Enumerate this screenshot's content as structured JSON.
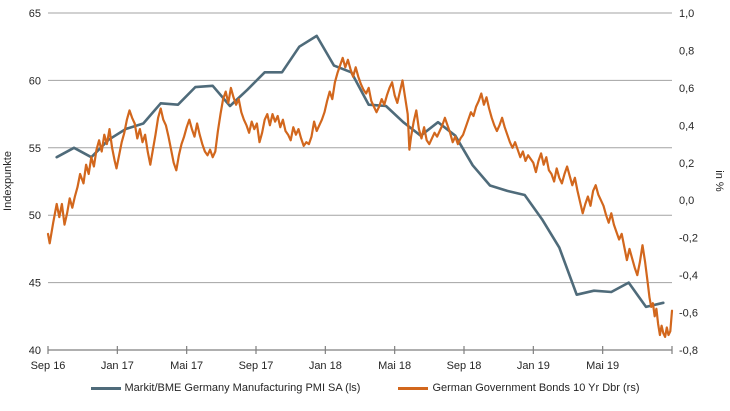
{
  "chart_data": {
    "type": "line",
    "title": "",
    "background_color": "#ffffff",
    "grid_color": "#a3a3a3",
    "axis_color": "#7f7f7f",
    "text_color": "#262626",
    "grid": true,
    "legend_position": "bottom-center",
    "x_months_total": 36,
    "x_axis": {
      "tick_labels": [
        "Sep 16",
        "Jan 17",
        "Mai 17",
        "Sep 17",
        "Jan 18",
        "Mai 18",
        "Sep 18",
        "Jan 19",
        "Mai 19"
      ],
      "num_ticks": 10
    },
    "y_left": {
      "label": "Indexpunkte",
      "min": 40,
      "max": 65,
      "ticks": [
        "65",
        "60",
        "55",
        "50",
        "45",
        "40"
      ],
      "tick_values": [
        65,
        60,
        55,
        50,
        45,
        40
      ],
      "grid_values": [
        65,
        60,
        55,
        50,
        45
      ]
    },
    "y_right": {
      "label": "in %",
      "min": -0.8,
      "max": 1.0,
      "ticks": [
        "1,0",
        "0,8",
        "0,6",
        "0,4",
        "0,2",
        "0,0",
        "-0,2",
        "-0,4",
        "-0,6",
        "-0,8"
      ],
      "tick_values": [
        1.0,
        0.8,
        0.6,
        0.4,
        0.2,
        0.0,
        -0.2,
        -0.4,
        -0.6,
        -0.8
      ]
    },
    "series": [
      {
        "name": "Markit/BME Germany Manufacturing PMI SA (ls)",
        "axis": "left",
        "color": "#4f6b7a",
        "line_width": 2.6,
        "cadence": "monthly",
        "x_offset_months": 0.5,
        "values": [
          54.3,
          55.0,
          54.3,
          55.6,
          56.4,
          56.8,
          58.3,
          58.2,
          59.5,
          59.6,
          58.1,
          59.3,
          60.6,
          60.6,
          62.5,
          63.3,
          61.1,
          60.6,
          58.2,
          58.1,
          56.9,
          55.9,
          56.9,
          55.9,
          53.7,
          52.2,
          51.8,
          51.5,
          49.7,
          47.6,
          44.1,
          44.4,
          44.3,
          45.0,
          43.2,
          43.5
        ]
      },
      {
        "name": "German Government Bonds 10 Yr Dbr (rs)",
        "axis": "right",
        "color": "#d2671d",
        "line_width": 2.2,
        "cadence": "irregular",
        "points": [
          [
            0,
            -0.18
          ],
          [
            0.1,
            -0.23
          ],
          [
            0.3,
            -0.12
          ],
          [
            0.5,
            -0.02
          ],
          [
            0.65,
            -0.09
          ],
          [
            0.8,
            -0.02
          ],
          [
            0.95,
            -0.13
          ],
          [
            1.1,
            -0.07
          ],
          [
            1.25,
            0.01
          ],
          [
            1.4,
            -0.04
          ],
          [
            1.55,
            0.02
          ],
          [
            1.7,
            0.07
          ],
          [
            1.85,
            0.14
          ],
          [
            2.05,
            0.09
          ],
          [
            2.2,
            0.19
          ],
          [
            2.35,
            0.14
          ],
          [
            2.5,
            0.23
          ],
          [
            2.65,
            0.18
          ],
          [
            2.8,
            0.27
          ],
          [
            2.95,
            0.32
          ],
          [
            3.1,
            0.26
          ],
          [
            3.25,
            0.35
          ],
          [
            3.4,
            0.3
          ],
          [
            3.55,
            0.38
          ],
          [
            3.7,
            0.28
          ],
          [
            3.85,
            0.21
          ],
          [
            3.95,
            0.17
          ],
          [
            4.1,
            0.24
          ],
          [
            4.25,
            0.31
          ],
          [
            4.4,
            0.36
          ],
          [
            4.55,
            0.43
          ],
          [
            4.7,
            0.48
          ],
          [
            4.85,
            0.44
          ],
          [
            5,
            0.41
          ],
          [
            5.15,
            0.33
          ],
          [
            5.3,
            0.38
          ],
          [
            5.45,
            0.31
          ],
          [
            5.6,
            0.35
          ],
          [
            5.75,
            0.26
          ],
          [
            5.9,
            0.19
          ],
          [
            6.05,
            0.27
          ],
          [
            6.2,
            0.35
          ],
          [
            6.35,
            0.44
          ],
          [
            6.5,
            0.49
          ],
          [
            6.65,
            0.43
          ],
          [
            6.8,
            0.4
          ],
          [
            6.95,
            0.34
          ],
          [
            7.1,
            0.27
          ],
          [
            7.25,
            0.2
          ],
          [
            7.4,
            0.16
          ],
          [
            7.55,
            0.24
          ],
          [
            7.7,
            0.3
          ],
          [
            7.85,
            0.34
          ],
          [
            8,
            0.39
          ],
          [
            8.15,
            0.43
          ],
          [
            8.3,
            0.38
          ],
          [
            8.45,
            0.34
          ],
          [
            8.6,
            0.41
          ],
          [
            8.75,
            0.35
          ],
          [
            8.9,
            0.3
          ],
          [
            9.05,
            0.26
          ],
          [
            9.2,
            0.24
          ],
          [
            9.35,
            0.27
          ],
          [
            9.5,
            0.23
          ],
          [
            9.65,
            0.26
          ],
          [
            9.8,
            0.37
          ],
          [
            9.95,
            0.46
          ],
          [
            10.1,
            0.54
          ],
          [
            10.25,
            0.58
          ],
          [
            10.4,
            0.52
          ],
          [
            10.55,
            0.6
          ],
          [
            10.7,
            0.55
          ],
          [
            10.85,
            0.51
          ],
          [
            11,
            0.54
          ],
          [
            11.15,
            0.47
          ],
          [
            11.3,
            0.43
          ],
          [
            11.45,
            0.4
          ],
          [
            11.6,
            0.36
          ],
          [
            11.75,
            0.42
          ],
          [
            11.9,
            0.38
          ],
          [
            12.05,
            0.41
          ],
          [
            12.2,
            0.31
          ],
          [
            12.35,
            0.36
          ],
          [
            12.5,
            0.43
          ],
          [
            12.65,
            0.46
          ],
          [
            12.8,
            0.4
          ],
          [
            12.95,
            0.46
          ],
          [
            13.1,
            0.42
          ],
          [
            13.25,
            0.45
          ],
          [
            13.4,
            0.39
          ],
          [
            13.55,
            0.43
          ],
          [
            13.7,
            0.37
          ],
          [
            13.85,
            0.35
          ],
          [
            14,
            0.32
          ],
          [
            14.15,
            0.39
          ],
          [
            14.3,
            0.35
          ],
          [
            14.45,
            0.38
          ],
          [
            14.6,
            0.33
          ],
          [
            14.75,
            0.29
          ],
          [
            14.9,
            0.31
          ],
          [
            15.05,
            0.3
          ],
          [
            15.2,
            0.34
          ],
          [
            15.35,
            0.42
          ],
          [
            15.5,
            0.37
          ],
          [
            15.65,
            0.4
          ],
          [
            15.8,
            0.43
          ],
          [
            15.95,
            0.47
          ],
          [
            16.1,
            0.53
          ],
          [
            16.25,
            0.58
          ],
          [
            16.4,
            0.54
          ],
          [
            16.55,
            0.63
          ],
          [
            16.7,
            0.68
          ],
          [
            16.85,
            0.72
          ],
          [
            17,
            0.76
          ],
          [
            17.15,
            0.71
          ],
          [
            17.3,
            0.75
          ],
          [
            17.45,
            0.7
          ],
          [
            17.6,
            0.66
          ],
          [
            17.75,
            0.71
          ],
          [
            17.9,
            0.66
          ],
          [
            18.05,
            0.62
          ],
          [
            18.2,
            0.59
          ],
          [
            18.35,
            0.57
          ],
          [
            18.5,
            0.6
          ],
          [
            18.65,
            0.53
          ],
          [
            18.8,
            0.5
          ],
          [
            18.95,
            0.47
          ],
          [
            19.1,
            0.5
          ],
          [
            19.25,
            0.54
          ],
          [
            19.4,
            0.51
          ],
          [
            19.55,
            0.56
          ],
          [
            19.7,
            0.6
          ],
          [
            19.85,
            0.63
          ],
          [
            20,
            0.56
          ],
          [
            20.15,
            0.52
          ],
          [
            20.3,
            0.58
          ],
          [
            20.45,
            0.64
          ],
          [
            20.6,
            0.55
          ],
          [
            20.75,
            0.46
          ],
          [
            20.85,
            0.27
          ],
          [
            20.95,
            0.34
          ],
          [
            21.1,
            0.42
          ],
          [
            21.25,
            0.48
          ],
          [
            21.4,
            0.38
          ],
          [
            21.55,
            0.33
          ],
          [
            21.7,
            0.39
          ],
          [
            21.85,
            0.32
          ],
          [
            22,
            0.3
          ],
          [
            22.15,
            0.33
          ],
          [
            22.3,
            0.36
          ],
          [
            22.45,
            0.34
          ],
          [
            22.6,
            0.37
          ],
          [
            22.75,
            0.4
          ],
          [
            22.9,
            0.44
          ],
          [
            23.05,
            0.4
          ],
          [
            23.2,
            0.36
          ],
          [
            23.35,
            0.31
          ],
          [
            23.5,
            0.34
          ],
          [
            23.65,
            0.3
          ],
          [
            23.8,
            0.33
          ],
          [
            23.95,
            0.35
          ],
          [
            24.1,
            0.39
          ],
          [
            24.25,
            0.43
          ],
          [
            24.4,
            0.47
          ],
          [
            24.55,
            0.45
          ],
          [
            24.7,
            0.5
          ],
          [
            24.85,
            0.53
          ],
          [
            25,
            0.57
          ],
          [
            25.15,
            0.51
          ],
          [
            25.3,
            0.55
          ],
          [
            25.45,
            0.49
          ],
          [
            25.6,
            0.44
          ],
          [
            25.75,
            0.4
          ],
          [
            25.9,
            0.37
          ],
          [
            26.05,
            0.4
          ],
          [
            26.2,
            0.44
          ],
          [
            26.35,
            0.39
          ],
          [
            26.5,
            0.35
          ],
          [
            26.65,
            0.31
          ],
          [
            26.8,
            0.28
          ],
          [
            26.95,
            0.31
          ],
          [
            27.1,
            0.27
          ],
          [
            27.25,
            0.23
          ],
          [
            27.4,
            0.26
          ],
          [
            27.55,
            0.21
          ],
          [
            27.7,
            0.24
          ],
          [
            27.85,
            0.22
          ],
          [
            28,
            0.2
          ],
          [
            28.15,
            0.15
          ],
          [
            28.3,
            0.21
          ],
          [
            28.45,
            0.25
          ],
          [
            28.6,
            0.19
          ],
          [
            28.75,
            0.23
          ],
          [
            28.9,
            0.16
          ],
          [
            29.05,
            0.14
          ],
          [
            29.2,
            0.1
          ],
          [
            29.35,
            0.17
          ],
          [
            29.5,
            0.12
          ],
          [
            29.65,
            0.09
          ],
          [
            29.8,
            0.14
          ],
          [
            29.95,
            0.18
          ],
          [
            30.1,
            0.13
          ],
          [
            30.25,
            0.08
          ],
          [
            30.4,
            0.12
          ],
          [
            30.55,
            0.05
          ],
          [
            30.7,
            -0.01
          ],
          [
            30.85,
            -0.07
          ],
          [
            31,
            -0.02
          ],
          [
            31.15,
            0.02
          ],
          [
            31.3,
            -0.03
          ],
          [
            31.45,
            0.05
          ],
          [
            31.6,
            0.08
          ],
          [
            31.75,
            0.03
          ],
          [
            31.9,
            0
          ],
          [
            32.05,
            -0.03
          ],
          [
            32.2,
            -0.08
          ],
          [
            32.35,
            -0.12
          ],
          [
            32.5,
            -0.07
          ],
          [
            32.65,
            -0.13
          ],
          [
            32.8,
            -0.17
          ],
          [
            32.95,
            -0.21
          ],
          [
            33.1,
            -0.18
          ],
          [
            33.25,
            -0.25
          ],
          [
            33.4,
            -0.32
          ],
          [
            33.55,
            -0.26
          ],
          [
            33.7,
            -0.31
          ],
          [
            33.85,
            -0.36
          ],
          [
            34,
            -0.4
          ],
          [
            34.15,
            -0.33
          ],
          [
            34.3,
            -0.24
          ],
          [
            34.45,
            -0.33
          ],
          [
            34.6,
            -0.44
          ],
          [
            34.7,
            -0.52
          ],
          [
            34.8,
            -0.57
          ],
          [
            34.9,
            -0.55
          ],
          [
            35,
            -0.62
          ],
          [
            35.1,
            -0.58
          ],
          [
            35.2,
            -0.66
          ],
          [
            35.3,
            -0.72
          ],
          [
            35.4,
            -0.67
          ],
          [
            35.5,
            -0.71
          ],
          [
            35.6,
            -0.73
          ],
          [
            35.7,
            -0.68
          ],
          [
            35.8,
            -0.72
          ],
          [
            35.9,
            -0.7
          ],
          [
            36,
            -0.59
          ]
        ]
      }
    ]
  }
}
